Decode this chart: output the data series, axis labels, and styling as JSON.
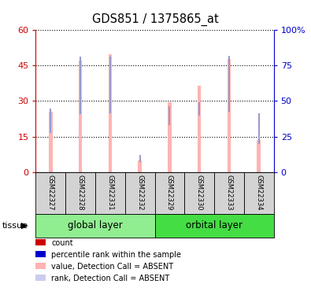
{
  "title": "GDS851 / 1375865_at",
  "samples": [
    "GSM22327",
    "GSM22328",
    "GSM22331",
    "GSM22332",
    "GSM22329",
    "GSM22330",
    "GSM22333",
    "GSM22334"
  ],
  "pink_values": [
    25.5,
    47.0,
    49.5,
    5.0,
    29.5,
    36.5,
    47.5,
    13.5
  ],
  "blue_values": [
    27.0,
    48.5,
    48.5,
    7.5,
    28.0,
    29.5,
    49.0,
    25.0
  ],
  "blue_bottom": [
    16.5,
    24.5,
    25.0,
    4.5,
    20.0,
    24.0,
    25.5,
    12.0
  ],
  "ylim_left": [
    0,
    60
  ],
  "ylim_right": [
    0,
    100
  ],
  "yticks_left": [
    0,
    15,
    30,
    45,
    60
  ],
  "ytick_labels_right": [
    "0",
    "25",
    "50",
    "75",
    "100%"
  ],
  "group_colors": [
    "#90ee90",
    "#44dd44"
  ],
  "group_labels": [
    "global layer",
    "orbital layer"
  ],
  "group_starts": [
    0,
    4
  ],
  "group_ends": [
    4,
    8
  ],
  "pink_color": "#ffb3b3",
  "blue_color": "#9999cc",
  "axis_color_left": "#cc0000",
  "axis_color_right": "#0000cc",
  "bg_color": "#ffffff",
  "legend_items": [
    {
      "color": "#cc0000",
      "label": "count"
    },
    {
      "color": "#0000cc",
      "label": "percentile rank within the sample"
    },
    {
      "color": "#ffb3b3",
      "label": "value, Detection Call = ABSENT"
    },
    {
      "color": "#ccccee",
      "label": "rank, Detection Call = ABSENT"
    }
  ]
}
